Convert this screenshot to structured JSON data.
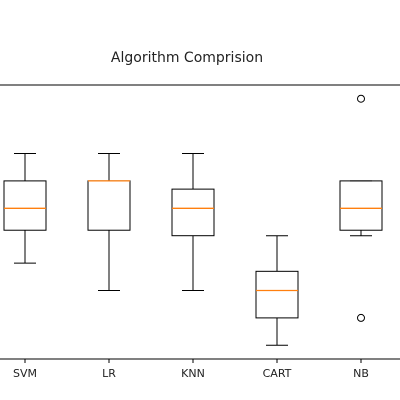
{
  "chart_data": {
    "type": "box",
    "title": "Algorithm Comprision",
    "xlabel": "",
    "ylabel": "",
    "ylim": [
      0,
      1
    ],
    "grid": false,
    "categories": [
      "SVM",
      "LR",
      "KNN",
      "CART",
      "NB"
    ],
    "boxes": [
      {
        "category": "SVM",
        "whisker_low": 0.35,
        "q1": 0.47,
        "median": 0.55,
        "q3": 0.65,
        "whisker_high": 0.75,
        "outliers": []
      },
      {
        "category": "LR",
        "whisker_low": 0.25,
        "q1": 0.47,
        "median": 0.65,
        "q3": 0.65,
        "whisker_high": 0.75,
        "outliers": []
      },
      {
        "category": "KNN",
        "whisker_low": 0.25,
        "q1": 0.45,
        "median": 0.55,
        "q3": 0.62,
        "whisker_high": 0.75,
        "outliers": []
      },
      {
        "category": "CART",
        "whisker_low": 0.05,
        "q1": 0.15,
        "median": 0.25,
        "q3": 0.32,
        "whisker_high": 0.45,
        "outliers": []
      },
      {
        "category": "NB",
        "whisker_low": 0.45,
        "q1": 0.47,
        "median": 0.55,
        "q3": 0.65,
        "whisker_high": 0.65,
        "outliers": [
          0.95,
          0.15
        ]
      }
    ],
    "colors": {
      "box": "#000000",
      "median": "#ff7f0e",
      "axis": "#000000",
      "outlier": "#000000"
    }
  }
}
